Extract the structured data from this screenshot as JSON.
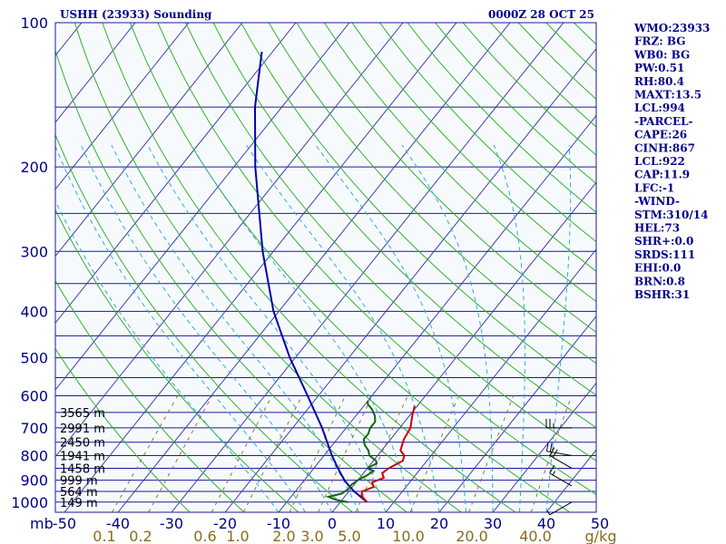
{
  "header": {
    "station": "USHH (23933) Sounding",
    "time": "0000Z 28 OCT 25"
  },
  "indices": [
    "WMO:23933",
    "FRZ: BG",
    "WB0: BG",
    "PW:0.51",
    "RH:80.4",
    "MAXT:13.5",
    "LCL:994",
    "-PARCEL-",
    "CAPE:26",
    "CINH:867",
    "LCL:922",
    "CAP:11.9",
    "LFC:-1",
    "-WIND-",
    "STM:310/14",
    "HEL:73",
    "SHR+:0.0",
    "SRDS:111",
    "EHI:0.0",
    "BRN:0.8",
    "BSHR:31"
  ],
  "colors": {
    "isobar": "#1a1a9a",
    "isotherm": "#3a3aa8",
    "dry_adiabat": "#33b033",
    "moist_adiabat": "#33aadd",
    "mixing_ratio": "#8b7a3a",
    "temperature": "#cc0000",
    "dewpoint": "#116611",
    "parcel": "#0000aa",
    "text": "#00008b"
  },
  "chart_data": {
    "type": "skew-t",
    "yscale": "log",
    "ylim_hpa": [
      1050,
      100
    ],
    "xlim_c": [
      -50,
      50
    ],
    "x_unit": "C",
    "y_unit": "mb",
    "x_ticks": [
      "-50",
      "-40",
      "-30",
      "-20",
      "-10",
      "0",
      "10",
      "20",
      "30",
      "40",
      "50"
    ],
    "y_ticks": [
      "100",
      "200",
      "300",
      "400",
      "500",
      "600",
      "700",
      "800",
      "900",
      "1000"
    ],
    "mixing_ratio_labels": [
      "0.1",
      "0.2",
      "0.6",
      "1.0",
      "2.0",
      "3.0",
      "5.0",
      "10.0",
      "20.0",
      "40.0"
    ],
    "mixing_ratio_unit": "g/kg",
    "height_labels": [
      {
        "text": "3565 m",
        "p": 650
      },
      {
        "text": "2991 m",
        "p": 700
      },
      {
        "text": "2450 m",
        "p": 750
      },
      {
        "text": "1941 m",
        "p": 800
      },
      {
        "text": "1458 m",
        "p": 850
      },
      {
        "text": "999 m",
        "p": 900
      },
      {
        "text": "564 m",
        "p": 950
      },
      {
        "text": "149 m",
        "p": 1000
      }
    ],
    "temperature": [
      {
        "p": 1000,
        "t": 5.0
      },
      {
        "p": 970,
        "t": 3.0
      },
      {
        "p": 950,
        "t": 2.5
      },
      {
        "p": 930,
        "t": 4.0
      },
      {
        "p": 910,
        "t": 3.0
      },
      {
        "p": 890,
        "t": 4.5
      },
      {
        "p": 870,
        "t": 3.5
      },
      {
        "p": 850,
        "t": 4.0
      },
      {
        "p": 820,
        "t": 5.5
      },
      {
        "p": 800,
        "t": 5.0
      },
      {
        "p": 780,
        "t": 3.5
      },
      {
        "p": 760,
        "t": 3.0
      },
      {
        "p": 740,
        "t": 2.5
      },
      {
        "p": 700,
        "t": 2.0
      },
      {
        "p": 660,
        "t": 0.5
      },
      {
        "p": 630,
        "t": -0.5
      }
    ],
    "dewpoint": [
      {
        "p": 1000,
        "t": 1.5
      },
      {
        "p": 990,
        "t": -1.0
      },
      {
        "p": 975,
        "t": -3.0
      },
      {
        "p": 960,
        "t": -1.0
      },
      {
        "p": 940,
        "t": -0.5
      },
      {
        "p": 920,
        "t": -0.5
      },
      {
        "p": 900,
        "t": 0.0
      },
      {
        "p": 880,
        "t": 1.0
      },
      {
        "p": 860,
        "t": 1.5
      },
      {
        "p": 850,
        "t": 0.0
      },
      {
        "p": 830,
        "t": 1.0
      },
      {
        "p": 820,
        "t": 0.5
      },
      {
        "p": 800,
        "t": -1.5
      },
      {
        "p": 780,
        "t": -2.5
      },
      {
        "p": 760,
        "t": -4.0
      },
      {
        "p": 740,
        "t": -5.0
      },
      {
        "p": 720,
        "t": -5.0
      },
      {
        "p": 700,
        "t": -5.5
      },
      {
        "p": 680,
        "t": -5.5
      },
      {
        "p": 660,
        "t": -6.5
      },
      {
        "p": 640,
        "t": -8.0
      },
      {
        "p": 625,
        "t": -9.5
      },
      {
        "p": 615,
        "t": -10.0
      }
    ],
    "parcel": [
      {
        "p": 1000,
        "t": 5.0
      },
      {
        "p": 950,
        "t": 1.0
      },
      {
        "p": 922,
        "t": -1.0
      },
      {
        "p": 900,
        "t": -2.5
      },
      {
        "p": 850,
        "t": -5.5
      },
      {
        "p": 800,
        "t": -8.5
      },
      {
        "p": 700,
        "t": -14.5
      },
      {
        "p": 600,
        "t": -22.0
      },
      {
        "p": 500,
        "t": -31.0
      },
      {
        "p": 400,
        "t": -41.0
      },
      {
        "p": 300,
        "t": -52.0
      },
      {
        "p": 200,
        "t": -66.0
      },
      {
        "p": 150,
        "t": -75.0
      },
      {
        "p": 115,
        "t": -82.0
      }
    ],
    "wind_barbs": [
      {
        "p": 1000,
        "dir": 240,
        "spd": 5
      },
      {
        "p": 925,
        "dir": 300,
        "spd": 15
      },
      {
        "p": 850,
        "dir": 300,
        "spd": 20
      },
      {
        "p": 800,
        "dir": 280,
        "spd": 20
      },
      {
        "p": 700,
        "dir": 270,
        "spd": 25
      }
    ]
  }
}
